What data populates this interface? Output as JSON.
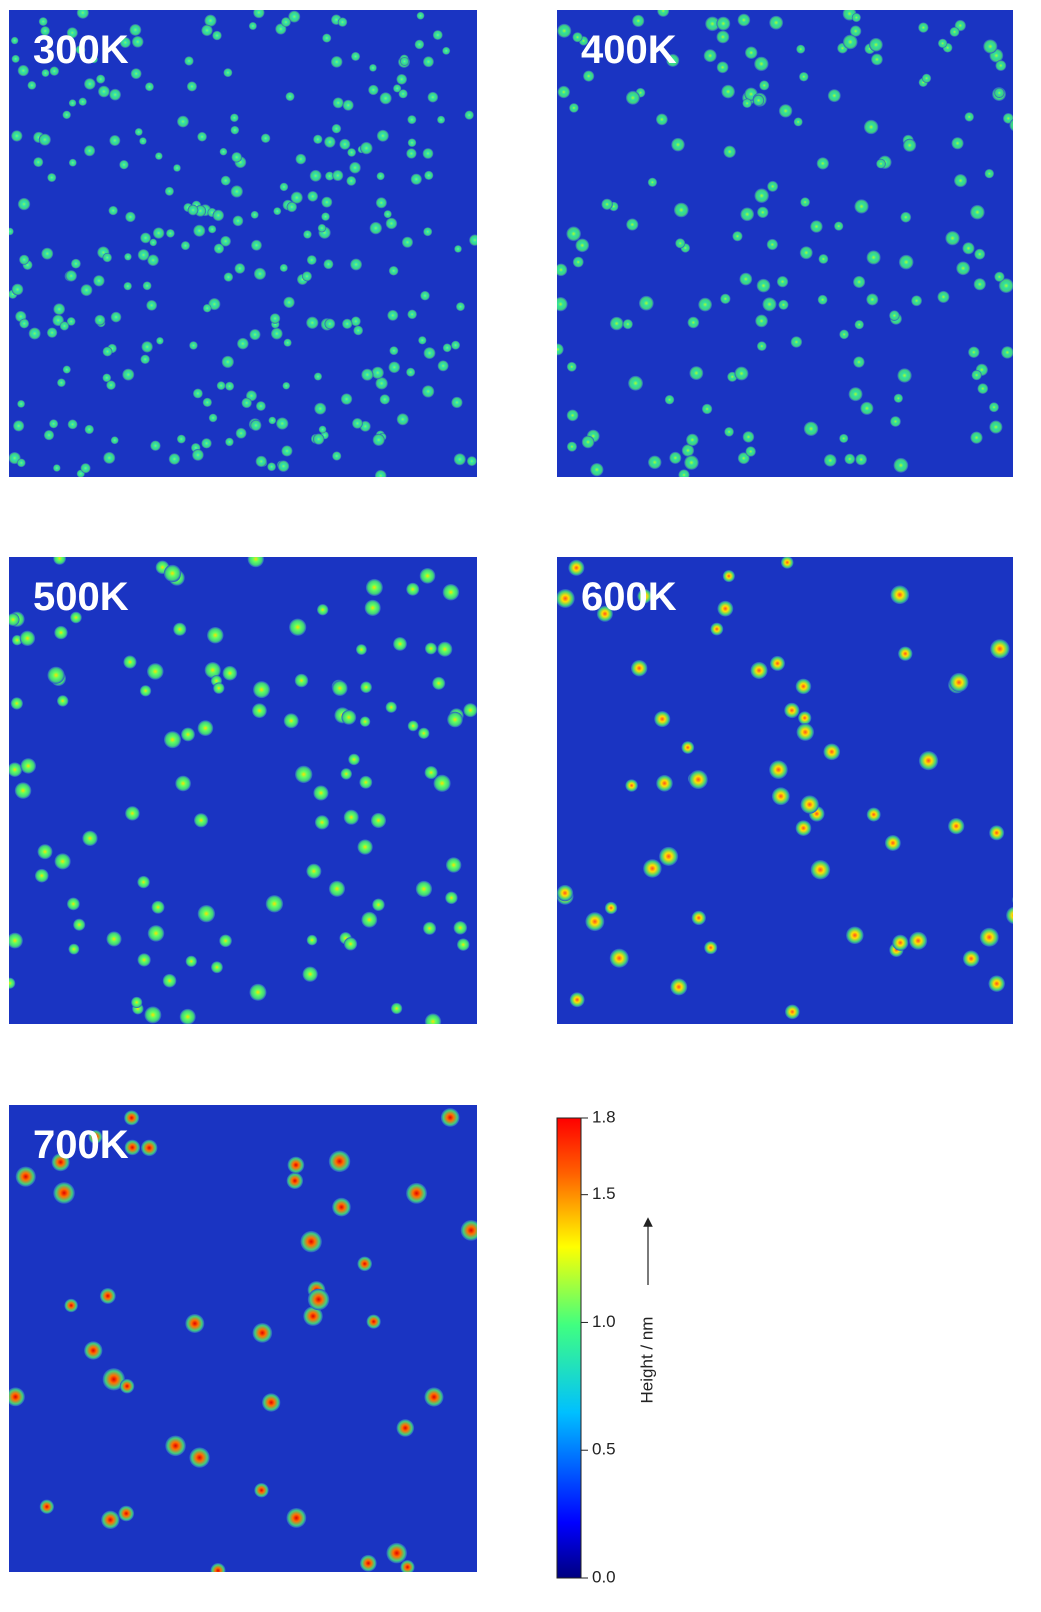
{
  "panels": [
    {
      "label": "300K"
    },
    {
      "label": "400K"
    },
    {
      "label": "500K"
    },
    {
      "label": "600K"
    },
    {
      "label": "700K"
    }
  ],
  "colorbar": {
    "title": "Height / nm",
    "lim": [
      0,
      1.8
    ],
    "ticks": [
      {
        "value": 0,
        "label": "0.0"
      },
      {
        "value": 0.5,
        "label": "0.5"
      },
      {
        "value": 1,
        "label": "1.0"
      },
      {
        "value": 1.5,
        "label": "1.5"
      },
      {
        "value": 1.8,
        "label": "1.8"
      }
    ]
  }
}
